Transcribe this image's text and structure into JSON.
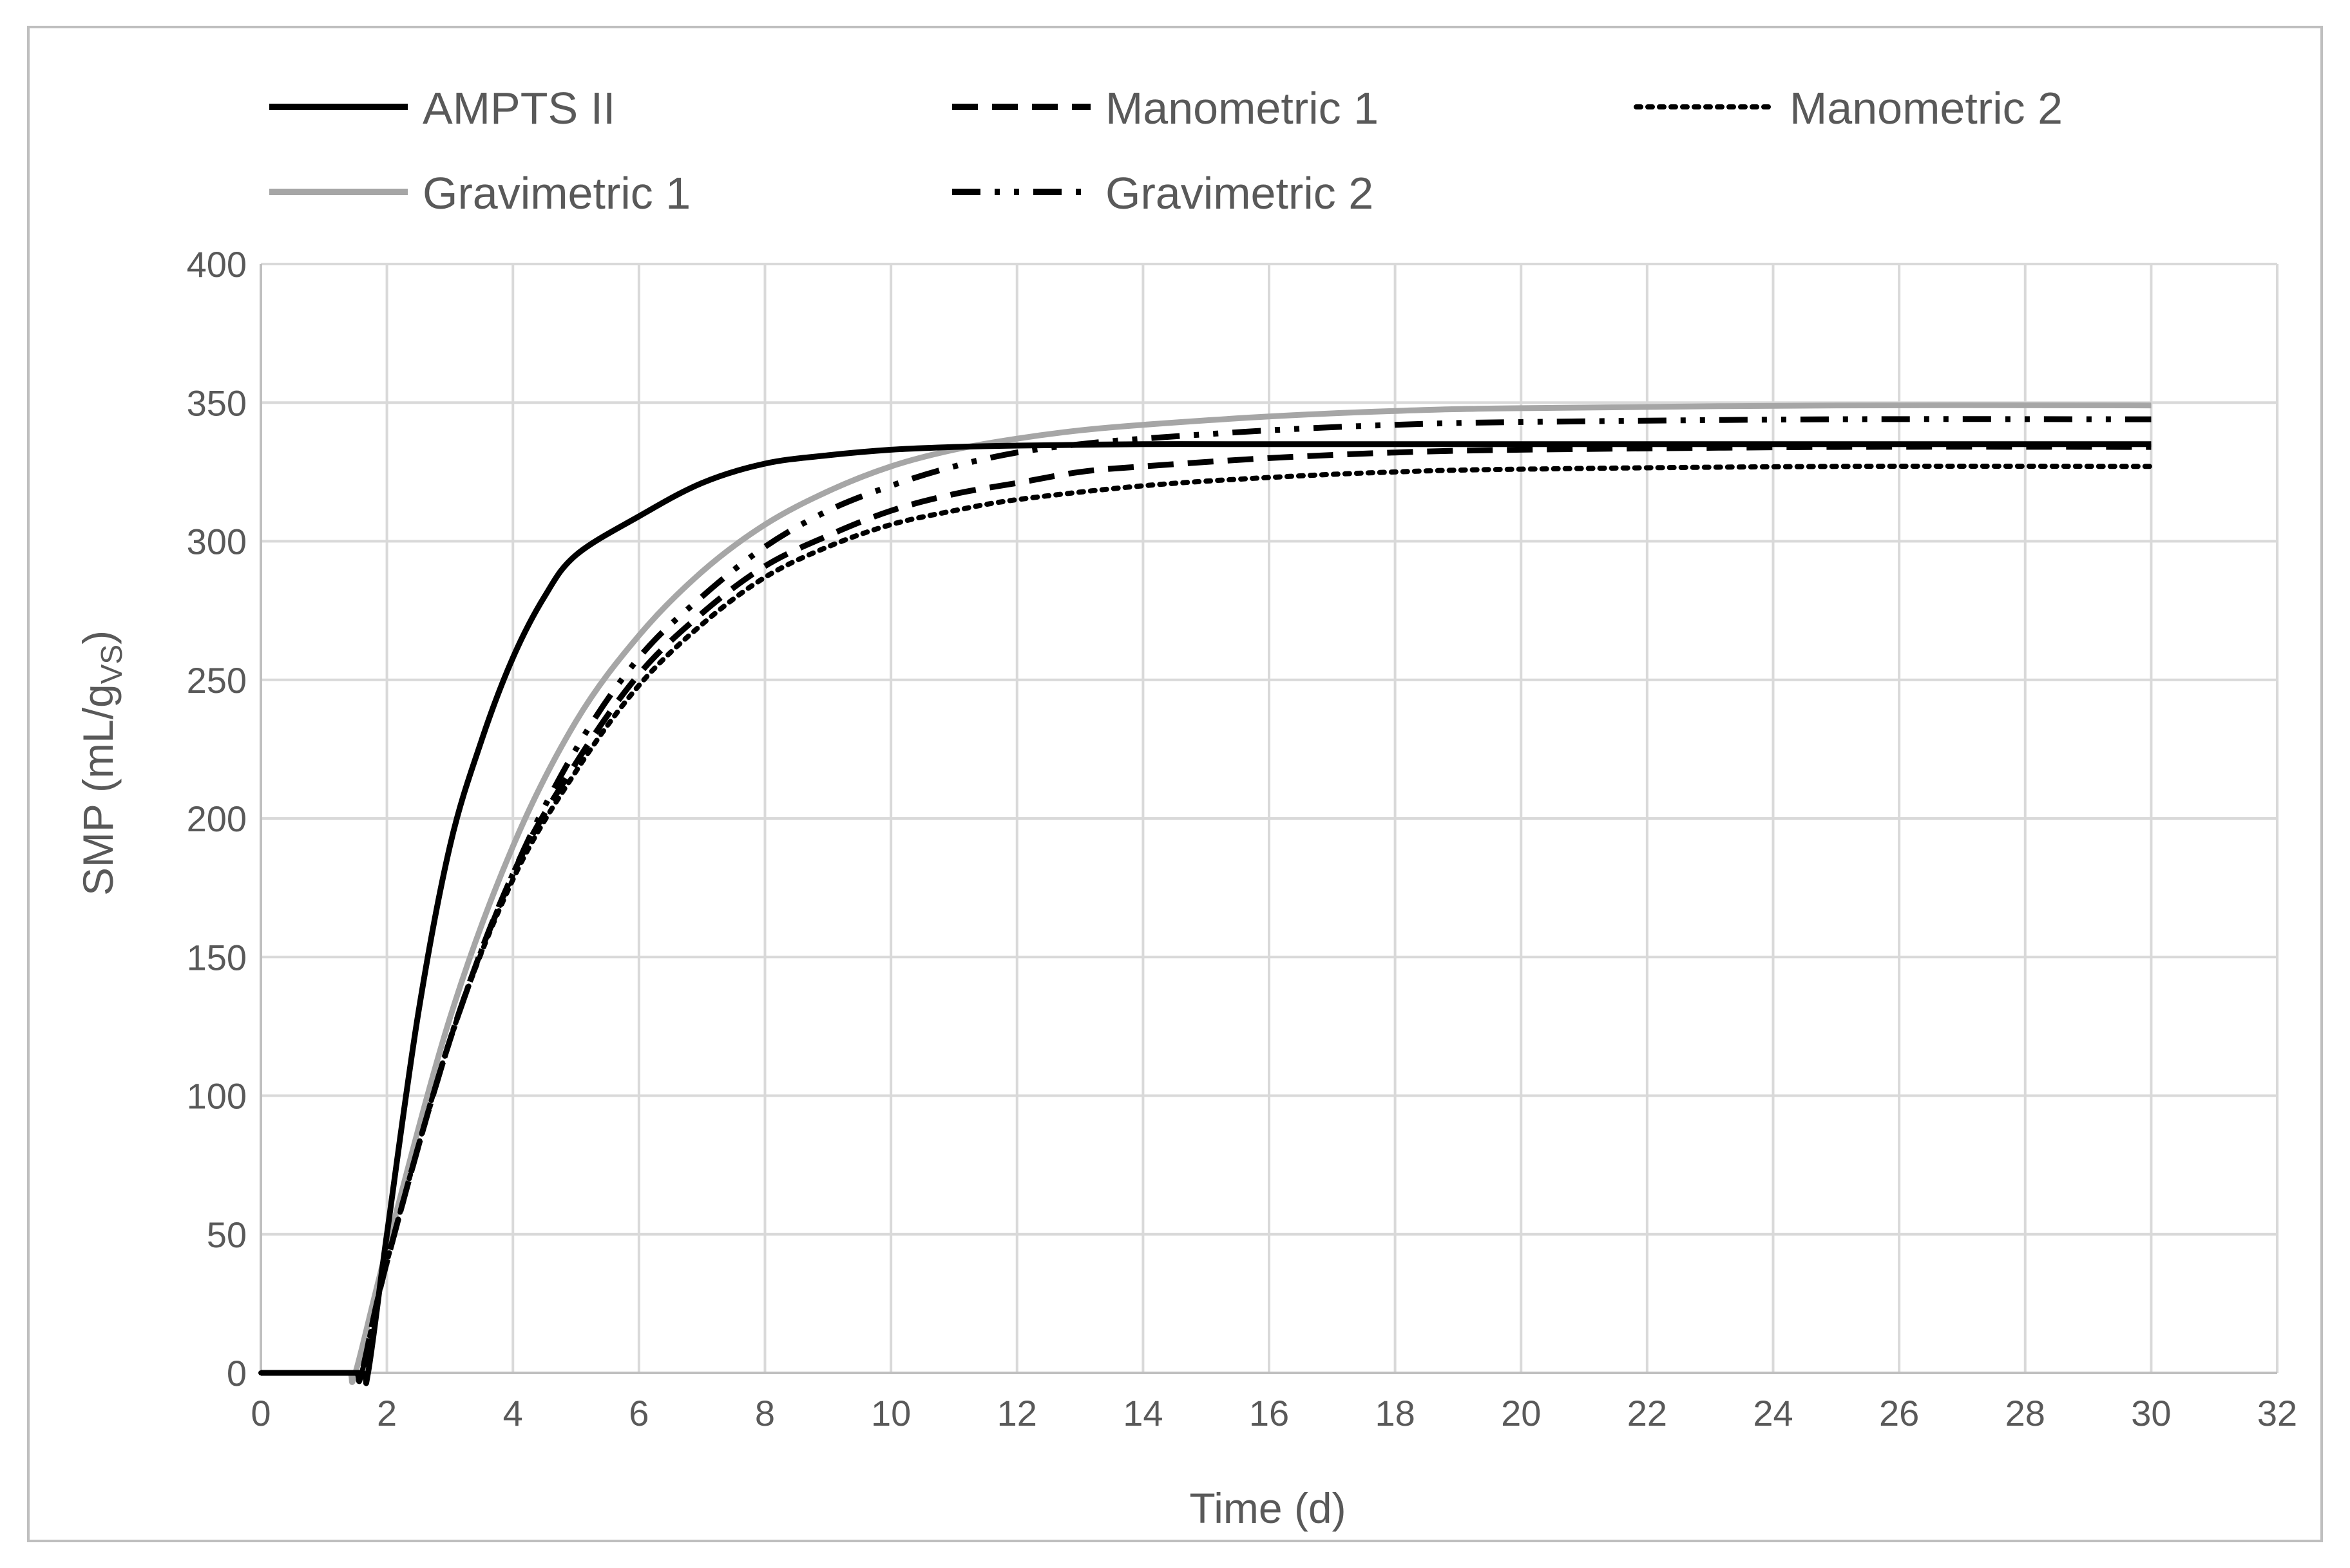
{
  "chart_data": {
    "type": "line",
    "xlabel": "Time (d)",
    "ylabel": {
      "main": "SMP (mL/g",
      "sub": "VS",
      "close": ")"
    },
    "xlim": [
      0,
      32
    ],
    "ylim": [
      0,
      400
    ],
    "xticks": [
      "0",
      "2",
      "4",
      "6",
      "8",
      "10",
      "12",
      "14",
      "16",
      "18",
      "20",
      "22",
      "24",
      "26",
      "28",
      "30",
      "32"
    ],
    "yticks": [
      "0",
      "50",
      "100",
      "150",
      "200",
      "250",
      "300",
      "350",
      "400"
    ],
    "grid": true,
    "legend_position": "top",
    "series": [
      {
        "name": "AMPTS II",
        "color": "#000000",
        "style": "solid",
        "x": [
          0,
          1,
          1.6,
          1.7,
          2,
          2.5,
          3,
          3.5,
          4,
          4.5,
          5,
          6,
          7,
          8,
          9,
          10,
          11,
          12,
          14,
          16,
          20,
          25,
          30
        ],
        "y": [
          0,
          0,
          0,
          0,
          50,
          130,
          190,
          228,
          258,
          280,
          295,
          309,
          321,
          328,
          331,
          333,
          334,
          334.5,
          335,
          335,
          335,
          335,
          335
        ]
      },
      {
        "name": "Manometric 1",
        "color": "#000000",
        "style": "dash",
        "x": [
          0,
          1,
          1.5,
          1.6,
          2,
          3,
          4,
          5,
          6,
          7,
          8,
          9,
          10,
          11,
          12,
          13,
          14,
          16,
          18,
          20,
          25,
          30
        ],
        "y": [
          0,
          0,
          0,
          0,
          40,
          120,
          180,
          220,
          252,
          274,
          291,
          302,
          311,
          317,
          321,
          325,
          327,
          330,
          332,
          333,
          334,
          334
        ]
      },
      {
        "name": "Manometric 2",
        "color": "#000000",
        "style": "dot",
        "x": [
          0,
          1,
          1.5,
          1.6,
          2,
          3,
          4,
          5,
          6,
          7,
          8,
          9,
          10,
          11,
          12,
          14,
          16,
          18,
          20,
          25,
          30
        ],
        "y": [
          0,
          0,
          0,
          0,
          40,
          120,
          178,
          217,
          248,
          270,
          287,
          298,
          306,
          311,
          315,
          320,
          323,
          325,
          326,
          327,
          327
        ]
      },
      {
        "name": "Gravimetric 1",
        "color": "#a6a6a6",
        "style": "solid",
        "x": [
          0,
          1,
          1.4,
          1.5,
          2,
          3,
          4,
          5,
          6,
          7,
          8,
          9,
          10,
          11,
          12,
          13,
          14,
          16,
          18,
          20,
          25,
          30
        ],
        "y": [
          0,
          0,
          0,
          0,
          45,
          128,
          190,
          235,
          266,
          289,
          306,
          318,
          327,
          333,
          337,
          340,
          342,
          345,
          347,
          348,
          349,
          349
        ]
      },
      {
        "name": "Gravimetric 2",
        "color": "#000000",
        "style": "dashdotdot",
        "x": [
          0,
          1,
          1.5,
          1.6,
          2,
          3,
          4,
          5,
          6,
          7,
          8,
          9,
          10,
          11,
          12,
          13,
          14,
          16,
          18,
          20,
          25,
          30
        ],
        "y": [
          0,
          0,
          0,
          0,
          40,
          120,
          180,
          225,
          258,
          280,
          298,
          311,
          320,
          327,
          332,
          335,
          337,
          340,
          342,
          343,
          344,
          344
        ]
      }
    ]
  }
}
